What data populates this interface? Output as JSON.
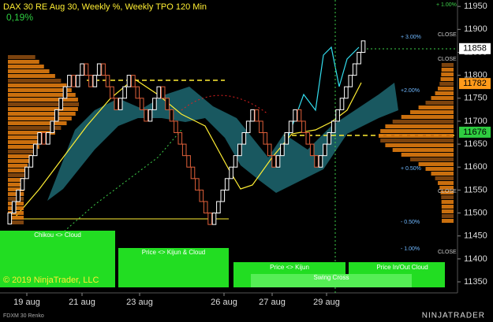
{
  "chart_data": {
    "type": "renko",
    "title": "DAX 30 RE Aug 30, Weekly %, Weekly TPO 120 Min",
    "subtitle": "0,19%",
    "values": [
      11500,
      11525,
      11550,
      11575,
      11600,
      11625,
      11650,
      11675,
      11650,
      11675,
      11700,
      11725,
      11750,
      11775,
      11800,
      11775,
      11800,
      11825,
      11800,
      11775,
      11800,
      11825,
      11800,
      11775,
      11750,
      11725,
      11750,
      11775,
      11800,
      11775,
      11750,
      11725,
      11700,
      11725,
      11750,
      11775,
      11750,
      11725,
      11700,
      11675,
      11650,
      11625,
      11600,
      11575,
      11550,
      11525,
      11500,
      11475,
      11500,
      11525,
      11550,
      11575,
      11600,
      11625,
      11650,
      11675,
      11700,
      11725,
      11700,
      11675,
      11650,
      11625,
      11600,
      11625,
      11650,
      11675,
      11700,
      11725,
      11700,
      11675,
      11650,
      11625,
      11600,
      11625,
      11650,
      11675,
      11700,
      11725,
      11750,
      11775,
      11800,
      11825,
      11850,
      11875
    ],
    "up_color": "#ffffff",
    "down_color": "#e0603a",
    "ylim": [
      11326,
      11964
    ],
    "yticks": [
      11350,
      11400,
      11450,
      11500,
      11550,
      11600,
      11650,
      11700,
      11750,
      11800,
      11850,
      11900,
      11950
    ],
    "x_labels": [
      "19 aug",
      "21 aug",
      "23 aug",
      "26 aug",
      "27 aug",
      "29 aug"
    ],
    "price_markers": [
      {
        "value": 11858,
        "color": "#ffffff"
      },
      {
        "value": 11782,
        "color": "#ff9a1a"
      },
      {
        "value": 11676,
        "color": "#2ecc40"
      }
    ],
    "percent_labels": [
      "+ 1.00%",
      "+ 3.00%",
      "+2.00%",
      "+ 0.50%",
      "- 0.50%",
      "- 1.00%",
      "CLOSE"
    ],
    "signals": [
      "Chikou <> Cloud",
      "Price <> Kijun & Cloud",
      "Price <> Kijun",
      "Price In/Out Cloud",
      "Swing Cross"
    ],
    "copyright": "© 2019 NinjaTrader, LLC",
    "instrument": "FDXM 30 Renko",
    "brand": "NINJATRADER"
  }
}
